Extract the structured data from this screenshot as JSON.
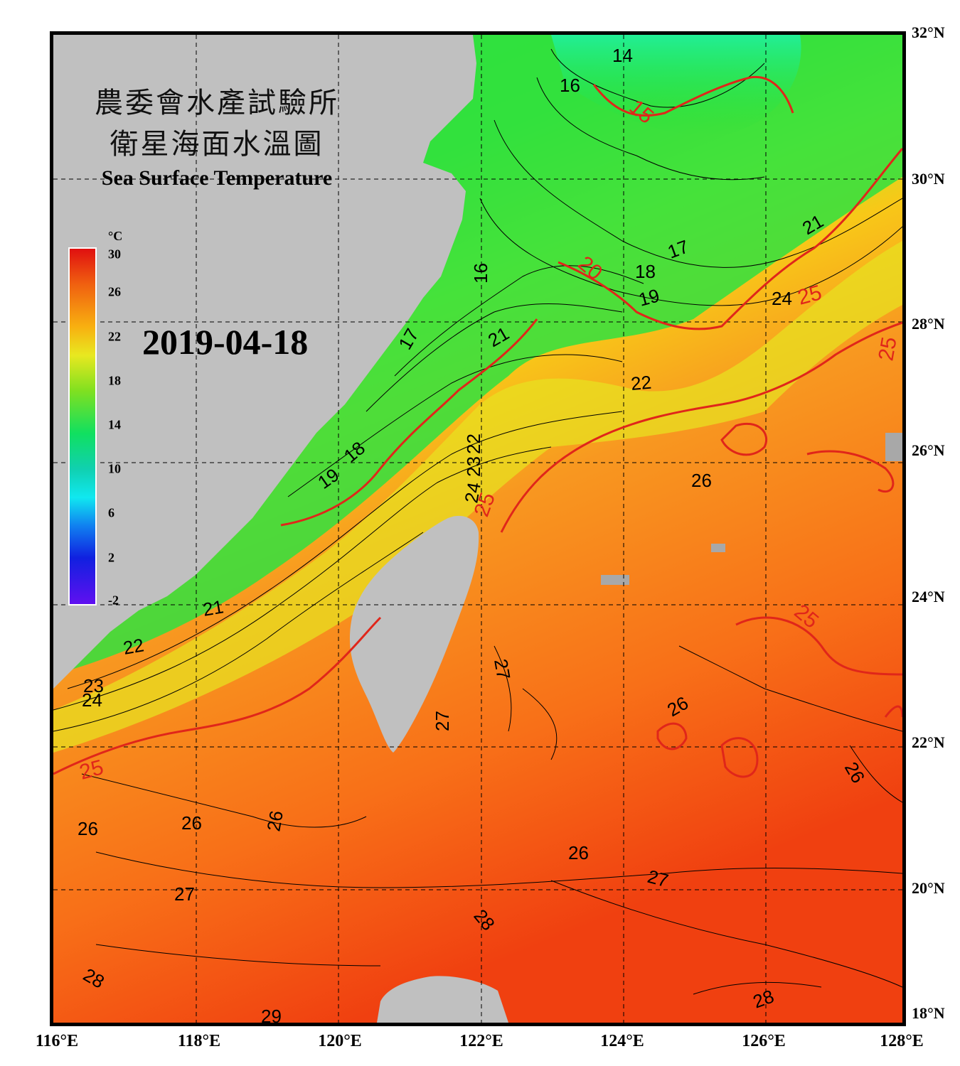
{
  "title": {
    "line1": "農委會水產試驗所",
    "line2": "衛星海面水溫圖",
    "english": "Sea Surface Temperature"
  },
  "date": "2019-04-18",
  "colorbar": {
    "unit": "°C",
    "ticks": [
      "30",
      "26",
      "22",
      "18",
      "14",
      "10",
      "6",
      "2",
      "-2"
    ],
    "min": -2,
    "max": 30
  },
  "axes": {
    "longitude_labels": [
      "116°E",
      "118°E",
      "120°E",
      "122°E",
      "124°E",
      "126°E",
      "128°E"
    ],
    "latitude_labels": [
      "32°N",
      "30°N",
      "28°N",
      "26°N",
      "24°N",
      "22°N",
      "20°N",
      "18°N"
    ]
  },
  "contour_labels": {
    "black": [
      "14",
      "16",
      "16",
      "17",
      "17",
      "18",
      "18",
      "19",
      "19",
      "21",
      "21",
      "21",
      "22",
      "22",
      "22",
      "23",
      "23",
      "24",
      "24",
      "24",
      "26",
      "26",
      "26",
      "26",
      "26",
      "26",
      "26",
      "27",
      "27",
      "27",
      "27",
      "28",
      "28",
      "28",
      "29"
    ],
    "red": [
      "15",
      "20",
      "25",
      "25",
      "25",
      "25",
      "25"
    ]
  },
  "colors": {
    "land": "#c0c0c0",
    "isotherm_major": "#e0261a",
    "isotherm_minor": "#000000",
    "warm": "#f06018",
    "cold": "#10e070"
  }
}
